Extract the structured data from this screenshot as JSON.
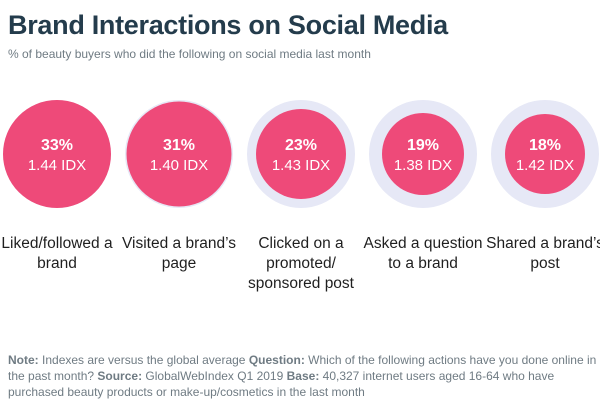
{
  "title": "Brand Interactions on Social Media",
  "subtitle": "% of beauty buyers who did the following on social media last month",
  "chart_data": {
    "type": "bubble",
    "title": "Brand Interactions on Social Media",
    "subtitle": "% of beauty buyers who did the following on social media last month",
    "items": [
      {
        "label": "Liked/followed a brand",
        "value": 33,
        "value_label": "33%",
        "index": 1.44,
        "index_label": "1.44 IDX"
      },
      {
        "label": "Visited a brand’s page",
        "value": 31,
        "value_label": "31%",
        "index": 1.4,
        "index_label": "1.40 IDX"
      },
      {
        "label": "Clicked on a promoted/ sponsored post",
        "value": 23,
        "value_label": "23%",
        "index": 1.43,
        "index_label": "1.43 IDX"
      },
      {
        "label": "Asked a question to a brand",
        "value": 19,
        "value_label": "19%",
        "index": 1.38,
        "index_label": "1.38 IDX"
      },
      {
        "label": "Shared a brand’s post",
        "value": 18,
        "value_label": "18%",
        "index": 1.42,
        "index_label": "1.42 IDX"
      }
    ],
    "max_value": 33,
    "colors": {
      "bubble": "#ee4a79",
      "ring": "#e6e8f6"
    }
  },
  "footnote": {
    "note_label": "Note:",
    "note_text": " Indexes are versus the global average ",
    "question_label": "Question:",
    "question_text": " Which of the following actions have you done online in the past month? ",
    "source_label": "Source:",
    "source_text": " GlobalWebIndex Q1 2019 ",
    "base_label": "Base:",
    "base_text": " 40,327 internet users aged 16-64 who have purchased beauty products or make-up/cosmetics in the last month"
  }
}
